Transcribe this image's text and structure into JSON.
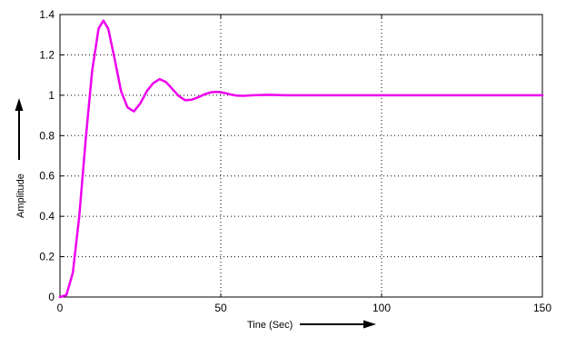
{
  "chart_data": {
    "type": "line",
    "xlabel": "Tine (Sec)",
    "ylabel": "Amplitude",
    "xlim": [
      0,
      150
    ],
    "ylim": [
      0,
      1.4
    ],
    "xticks": [
      0,
      50,
      100,
      150
    ],
    "xtick_labels": [
      "0",
      "50",
      "100",
      "150"
    ],
    "yticks": [
      0,
      0.2,
      0.4,
      0.6,
      0.8,
      1,
      1.2,
      1.4
    ],
    "ytick_labels": [
      "0",
      "0.2",
      "0.4",
      "0.6",
      "0.8",
      "1",
      "1.2",
      "1.4"
    ],
    "grid": true,
    "line_color": "#ee00ee",
    "series": [
      {
        "x": [
          0,
          2,
          4,
          6,
          8,
          10,
          12,
          13.5,
          15,
          17,
          19,
          21,
          23,
          25,
          27,
          29,
          31,
          33,
          35,
          37,
          39,
          41,
          43,
          45,
          47,
          49,
          51,
          53,
          55,
          57,
          60,
          65,
          70,
          80,
          100,
          120,
          150
        ],
        "y": [
          0,
          0.01,
          0.12,
          0.4,
          0.78,
          1.12,
          1.33,
          1.37,
          1.33,
          1.18,
          1.02,
          0.94,
          0.92,
          0.96,
          1.02,
          1.06,
          1.08,
          1.065,
          1.03,
          0.995,
          0.975,
          0.978,
          0.99,
          1.005,
          1.015,
          1.017,
          1.012,
          1.004,
          0.998,
          0.997,
          1.0,
          1.002,
          1.0,
          1.0,
          1.0,
          1.0,
          1.0
        ]
      }
    ]
  }
}
